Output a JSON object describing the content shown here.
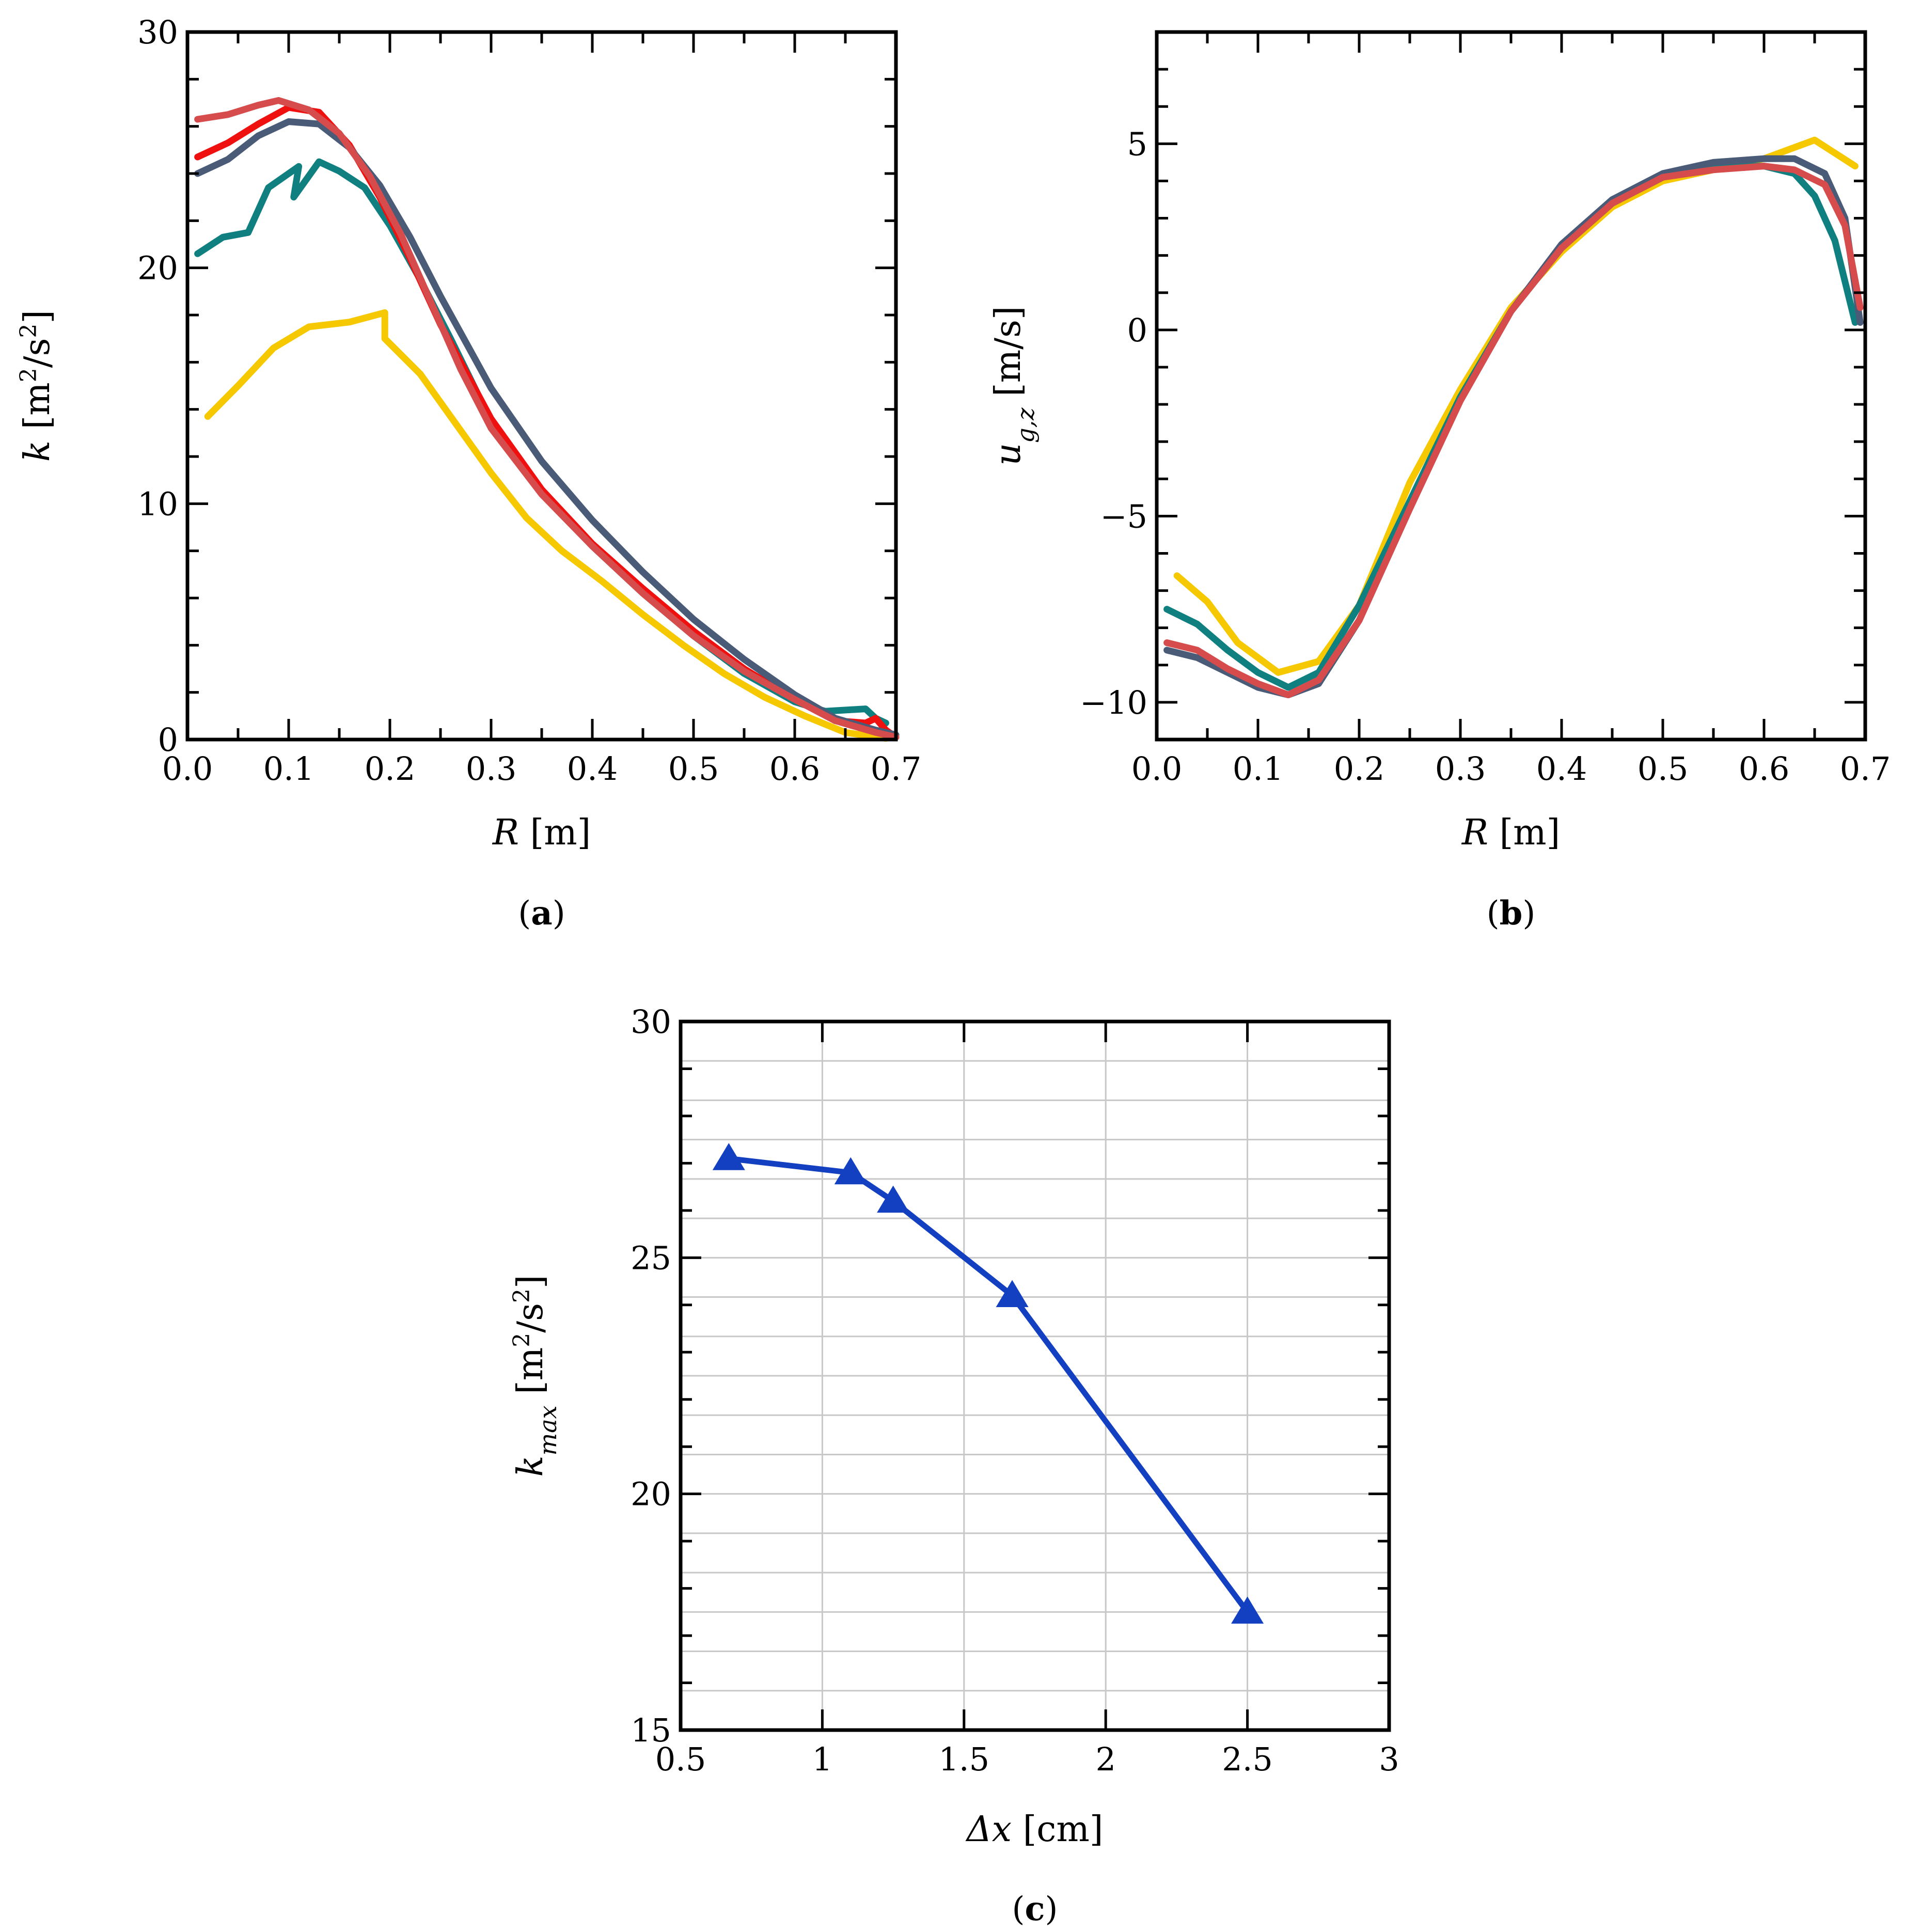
{
  "chart_data": [
    {
      "id": "a",
      "type": "line",
      "caption_letter": "a",
      "xlabel_var": "R",
      "xlabel_unit": "[m]",
      "ylabel_var": "k",
      "ylabel_unit_pre": "[m",
      "ylabel_unit_exp": "2",
      "ylabel_unit_mid": "/s",
      "ylabel_unit_exp2": "2",
      "ylabel_unit_post": "]",
      "xlim": [
        0.0,
        0.7
      ],
      "ylim": [
        0,
        30
      ],
      "xticks": [
        "0.0",
        "0.1",
        "0.2",
        "0.3",
        "0.4",
        "0.5",
        "0.6",
        "0.7"
      ],
      "xtick_values": [
        0,
        0.1,
        0.2,
        0.3,
        0.4,
        0.5,
        0.6,
        0.7
      ],
      "yticks": [
        "0",
        "10",
        "20",
        "30"
      ],
      "ytick_values": [
        0,
        10,
        20,
        30
      ],
      "grid": false,
      "series": [
        {
          "name": "yellow",
          "color": "#f5c800",
          "points": [
            [
              0.02,
              13.7
            ],
            [
              0.05,
              15.0
            ],
            [
              0.085,
              16.6
            ],
            [
              0.12,
              17.5
            ],
            [
              0.16,
              17.7
            ],
            [
              0.195,
              18.1
            ],
            [
              0.195,
              17.0
            ],
            [
              0.23,
              15.5
            ],
            [
              0.265,
              13.4
            ],
            [
              0.3,
              11.3
            ],
            [
              0.335,
              9.4
            ],
            [
              0.37,
              8.0
            ],
            [
              0.41,
              6.7
            ],
            [
              0.45,
              5.3
            ],
            [
              0.49,
              4.0
            ],
            [
              0.53,
              2.8
            ],
            [
              0.57,
              1.8
            ],
            [
              0.61,
              1.0
            ],
            [
              0.65,
              0.3
            ],
            [
              0.69,
              0.05
            ]
          ]
        },
        {
          "name": "teal",
          "color": "#0f7f80",
          "points": [
            [
              0.01,
              20.6
            ],
            [
              0.035,
              21.3
            ],
            [
              0.06,
              21.5
            ],
            [
              0.08,
              23.4
            ],
            [
              0.11,
              24.3
            ],
            [
              0.105,
              23.0
            ],
            [
              0.13,
              24.5
            ],
            [
              0.15,
              24.1
            ],
            [
              0.175,
              23.4
            ],
            [
              0.2,
              21.8
            ],
            [
              0.23,
              19.5
            ],
            [
              0.26,
              17.0
            ],
            [
              0.3,
              13.5
            ],
            [
              0.35,
              10.5
            ],
            [
              0.4,
              8.2
            ],
            [
              0.45,
              6.2
            ],
            [
              0.5,
              4.4
            ],
            [
              0.55,
              2.8
            ],
            [
              0.6,
              1.6
            ],
            [
              0.63,
              1.2
            ],
            [
              0.67,
              1.3
            ],
            [
              0.68,
              0.9
            ],
            [
              0.69,
              0.7
            ]
          ]
        },
        {
          "name": "red",
          "color": "#ef1010",
          "points": [
            [
              0.01,
              24.7
            ],
            [
              0.04,
              25.3
            ],
            [
              0.07,
              26.1
            ],
            [
              0.1,
              26.8
            ],
            [
              0.13,
              26.6
            ],
            [
              0.16,
              25.2
            ],
            [
              0.19,
              23.0
            ],
            [
              0.22,
              20.4
            ],
            [
              0.25,
              17.6
            ],
            [
              0.3,
              13.6
            ],
            [
              0.35,
              10.6
            ],
            [
              0.4,
              8.3
            ],
            [
              0.45,
              6.4
            ],
            [
              0.5,
              4.6
            ],
            [
              0.55,
              3.0
            ],
            [
              0.6,
              1.7
            ],
            [
              0.64,
              0.8
            ],
            [
              0.67,
              0.7
            ],
            [
              0.68,
              0.9
            ],
            [
              0.69,
              0.4
            ],
            [
              0.7,
              0.1
            ]
          ]
        },
        {
          "name": "slate",
          "color": "#4a5b78",
          "points": [
            [
              0.01,
              24.0
            ],
            [
              0.04,
              24.6
            ],
            [
              0.07,
              25.6
            ],
            [
              0.1,
              26.2
            ],
            [
              0.13,
              26.1
            ],
            [
              0.16,
              25.1
            ],
            [
              0.19,
              23.5
            ],
            [
              0.22,
              21.3
            ],
            [
              0.25,
              18.8
            ],
            [
              0.3,
              14.9
            ],
            [
              0.35,
              11.8
            ],
            [
              0.4,
              9.3
            ],
            [
              0.45,
              7.1
            ],
            [
              0.5,
              5.1
            ],
            [
              0.55,
              3.4
            ],
            [
              0.6,
              1.9
            ],
            [
              0.64,
              0.9
            ],
            [
              0.68,
              0.4
            ],
            [
              0.7,
              0.2
            ]
          ]
        },
        {
          "name": "rose",
          "color": "#d64c4c",
          "points": [
            [
              0.01,
              26.3
            ],
            [
              0.04,
              26.5
            ],
            [
              0.07,
              26.9
            ],
            [
              0.09,
              27.1
            ],
            [
              0.12,
              26.7
            ],
            [
              0.15,
              25.7
            ],
            [
              0.18,
              23.9
            ],
            [
              0.21,
              21.5
            ],
            [
              0.24,
              18.6
            ],
            [
              0.27,
              15.7
            ],
            [
              0.3,
              13.2
            ],
            [
              0.35,
              10.4
            ],
            [
              0.4,
              8.2
            ],
            [
              0.45,
              6.2
            ],
            [
              0.5,
              4.4
            ],
            [
              0.55,
              2.9
            ],
            [
              0.6,
              1.7
            ],
            [
              0.64,
              0.8
            ],
            [
              0.68,
              0.3
            ],
            [
              0.7,
              0.1
            ]
          ]
        }
      ]
    },
    {
      "id": "b",
      "type": "line",
      "caption_letter": "b",
      "xlabel_var": "R",
      "xlabel_unit": "[m]",
      "ylabel_var": "u",
      "ylabel_sub": "g,z",
      "ylabel_unit": "[m/s]",
      "xlim": [
        0.0,
        0.7
      ],
      "ylim": [
        -11,
        8
      ],
      "xticks": [
        "0.0",
        "0.1",
        "0.2",
        "0.3",
        "0.4",
        "0.5",
        "0.6",
        "0.7"
      ],
      "xtick_values": [
        0,
        0.1,
        0.2,
        0.3,
        0.4,
        0.5,
        0.6,
        0.7
      ],
      "yticks": [
        "−10",
        "−5",
        "0",
        "5"
      ],
      "ytick_values": [
        -10,
        -5,
        0,
        5
      ],
      "grid": false,
      "series": [
        {
          "name": "yellow",
          "color": "#f5c800",
          "points": [
            [
              0.02,
              -6.6
            ],
            [
              0.05,
              -7.3
            ],
            [
              0.08,
              -8.4
            ],
            [
              0.12,
              -9.2
            ],
            [
              0.16,
              -8.9
            ],
            [
              0.2,
              -7.4
            ],
            [
              0.25,
              -4.1
            ],
            [
              0.3,
              -1.6
            ],
            [
              0.35,
              0.6
            ],
            [
              0.4,
              2.1
            ],
            [
              0.45,
              3.3
            ],
            [
              0.5,
              4.0
            ],
            [
              0.55,
              4.3
            ],
            [
              0.6,
              4.6
            ],
            [
              0.65,
              5.1
            ],
            [
              0.69,
              4.4
            ]
          ]
        },
        {
          "name": "teal",
          "color": "#0f7f80",
          "points": [
            [
              0.01,
              -7.5
            ],
            [
              0.04,
              -7.9
            ],
            [
              0.07,
              -8.6
            ],
            [
              0.1,
              -9.2
            ],
            [
              0.13,
              -9.6
            ],
            [
              0.16,
              -9.2
            ],
            [
              0.2,
              -7.4
            ],
            [
              0.25,
              -4.6
            ],
            [
              0.3,
              -1.8
            ],
            [
              0.35,
              0.5
            ],
            [
              0.4,
              2.2
            ],
            [
              0.45,
              3.4
            ],
            [
              0.5,
              4.1
            ],
            [
              0.55,
              4.4
            ],
            [
              0.6,
              4.4
            ],
            [
              0.63,
              4.2
            ],
            [
              0.65,
              3.6
            ],
            [
              0.67,
              2.4
            ],
            [
              0.69,
              0.2
            ]
          ]
        },
        {
          "name": "slate",
          "color": "#4a5b78",
          "points": [
            [
              0.01,
              -8.6
            ],
            [
              0.04,
              -8.8
            ],
            [
              0.07,
              -9.2
            ],
            [
              0.1,
              -9.6
            ],
            [
              0.13,
              -9.8
            ],
            [
              0.16,
              -9.5
            ],
            [
              0.2,
              -7.8
            ],
            [
              0.25,
              -4.8
            ],
            [
              0.3,
              -1.9
            ],
            [
              0.35,
              0.5
            ],
            [
              0.4,
              2.3
            ],
            [
              0.45,
              3.5
            ],
            [
              0.5,
              4.2
            ],
            [
              0.55,
              4.5
            ],
            [
              0.6,
              4.6
            ],
            [
              0.63,
              4.6
            ],
            [
              0.66,
              4.2
            ],
            [
              0.68,
              3.0
            ],
            [
              0.695,
              0.2
            ]
          ]
        },
        {
          "name": "rose",
          "color": "#d64c4c",
          "points": [
            [
              0.01,
              -8.4
            ],
            [
              0.04,
              -8.6
            ],
            [
              0.07,
              -9.1
            ],
            [
              0.1,
              -9.5
            ],
            [
              0.13,
              -9.8
            ],
            [
              0.16,
              -9.4
            ],
            [
              0.2,
              -7.8
            ],
            [
              0.25,
              -4.8
            ],
            [
              0.3,
              -1.9
            ],
            [
              0.35,
              0.5
            ],
            [
              0.4,
              2.2
            ],
            [
              0.45,
              3.4
            ],
            [
              0.5,
              4.1
            ],
            [
              0.55,
              4.3
            ],
            [
              0.6,
              4.4
            ],
            [
              0.63,
              4.3
            ],
            [
              0.66,
              3.9
            ],
            [
              0.68,
              2.8
            ],
            [
              0.695,
              0.6
            ]
          ]
        }
      ]
    },
    {
      "id": "c",
      "type": "line",
      "caption_letter": "c",
      "xlabel_var": "Δx",
      "xlabel_unit": "[cm]",
      "ylabel_var": "k",
      "ylabel_sub": "max",
      "ylabel_unit_pre": "[m",
      "ylabel_unit_exp": "2",
      "ylabel_unit_mid": "/s",
      "ylabel_unit_exp2": "2",
      "ylabel_unit_post": "]",
      "xlim": [
        0.5,
        3
      ],
      "ylim": [
        15,
        30
      ],
      "xticks": [
        "0.5",
        "1",
        "1.5",
        "2",
        "2.5",
        "3"
      ],
      "xtick_values": [
        0.5,
        1,
        1.5,
        2,
        2.5,
        3
      ],
      "yticks": [
        "15",
        "20",
        "25",
        "30"
      ],
      "ytick_values": [
        15,
        20,
        25,
        30
      ],
      "grid": true,
      "marker": "triangle",
      "series": [
        {
          "name": "k_max",
          "color": "#1240c0",
          "points": [
            [
              0.67,
              27.1
            ],
            [
              1.1,
              26.8
            ],
            [
              1.25,
              26.2
            ],
            [
              1.67,
              24.2
            ],
            [
              2.5,
              17.5
            ]
          ]
        }
      ]
    }
  ]
}
